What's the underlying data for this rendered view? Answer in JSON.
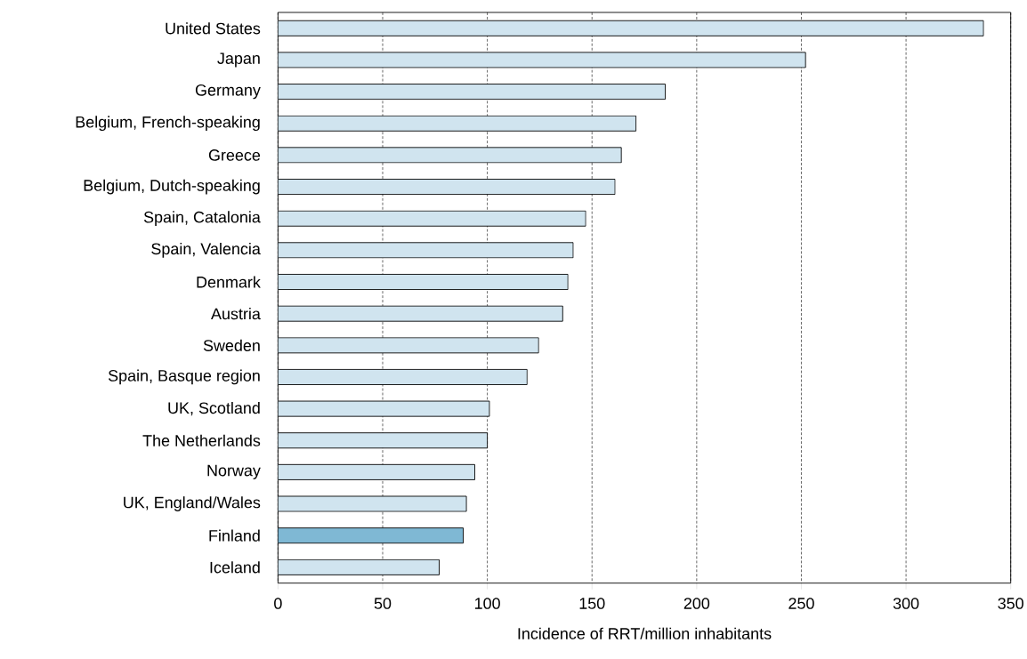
{
  "chart_data": {
    "type": "bar",
    "orientation": "horizontal",
    "xlabel": "Incidence of RRT/million inhabitants",
    "categories": [
      "United States",
      "Japan",
      "Germany",
      "Belgium, French-speaking",
      "Greece",
      "Belgium, Dutch-speaking",
      "Spain, Catalonia",
      "Spain, Valencia",
      "Denmark",
      "Austria",
      "Sweden",
      "Spain, Basque region",
      "UK, Scotland",
      "The Netherlands",
      "Norway",
      "UK, England/Wales",
      "Finland",
      "Iceland"
    ],
    "values": [
      337,
      252,
      185,
      171,
      164,
      161,
      147,
      141,
      138.5,
      136,
      124.5,
      119,
      101,
      100,
      94,
      90,
      88.5,
      77
    ],
    "colors": [
      "#d0e4ef",
      "#d0e4ef",
      "#d0e4ef",
      "#d0e4ef",
      "#d0e4ef",
      "#d0e4ef",
      "#d0e4ef",
      "#d0e4ef",
      "#d0e4ef",
      "#d0e4ef",
      "#d0e4ef",
      "#d0e4ef",
      "#d0e4ef",
      "#d0e4ef",
      "#d0e4ef",
      "#d0e4ef",
      "#7fb8d4",
      "#d0e4ef"
    ],
    "xlim": [
      0,
      350
    ],
    "xticks": [
      0,
      50,
      100,
      150,
      200,
      250,
      300,
      350
    ],
    "grid": "x"
  }
}
